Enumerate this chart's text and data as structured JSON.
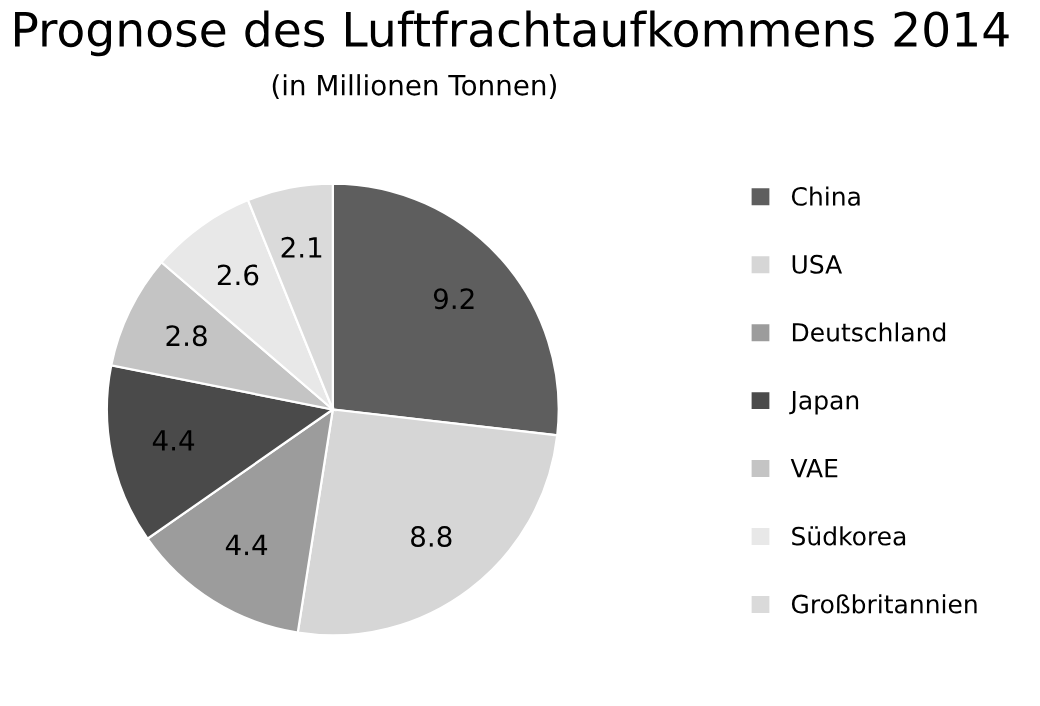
{
  "chart_data": {
    "type": "pie",
    "title": "Prognose des Luftfrachtaufkommens 2014",
    "subtitle": "(in Millionen Tonnen)",
    "categories": [
      "China",
      "USA",
      "Deutschland",
      "Japan",
      "VAE",
      "Südkorea",
      "Großbritannien"
    ],
    "values": [
      9.2,
      8.8,
      4.4,
      4.4,
      2.8,
      2.6,
      2.1
    ],
    "colors": [
      "#5e5e5e",
      "#d6d6d6",
      "#9c9c9c",
      "#4a4a4a",
      "#c4c4c4",
      "#e8e8e8",
      "#dadada"
    ],
    "data_labels": true,
    "legend": "right"
  }
}
